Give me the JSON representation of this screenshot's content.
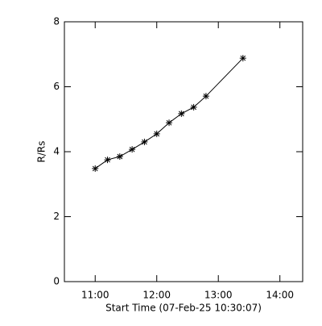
{
  "chart_data": {
    "type": "line",
    "x_label": "Start Time (07-Feb-25 10:30:07)",
    "y_label": "R/Rs",
    "x": [
      11.0,
      11.2,
      11.4,
      11.6,
      11.8,
      12.0,
      12.2,
      12.4,
      12.6,
      12.8,
      13.4
    ],
    "values": [
      3.48,
      3.75,
      3.85,
      4.07,
      4.3,
      4.55,
      4.89,
      5.17,
      5.37,
      5.71,
      6.88
    ],
    "color": "#000000",
    "marker": "asterisk",
    "xlim": [
      10.5,
      14.37
    ],
    "xticks": [
      {
        "value": 11,
        "label": "11:00"
      },
      {
        "value": 12,
        "label": "12:00"
      },
      {
        "value": 13,
        "label": "13:00"
      },
      {
        "value": 14,
        "label": "14:00"
      }
    ],
    "ylim": [
      0,
      8
    ],
    "yticks": [
      0,
      2,
      4,
      6,
      8
    ]
  }
}
